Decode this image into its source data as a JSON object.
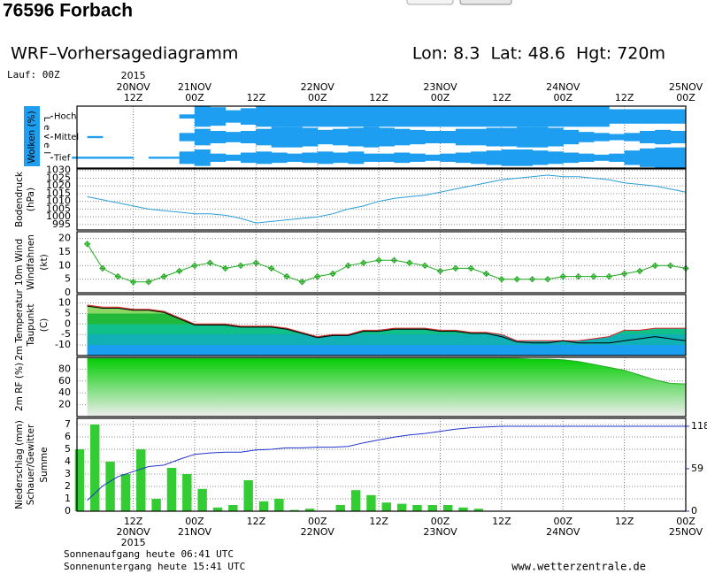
{
  "header": {
    "station": "76596 Forbach"
  },
  "meta": {
    "title": "WRF–Vorhersagediagramm",
    "location": "Lon: 8.3  Lat: 48.6  Hgt: 720m",
    "run": "Lauf: 00Z",
    "footer": [
      "Sonnenaufgang heute 06:41 UTC",
      "Sonnenuntergang heute 15:41 UTC"
    ],
    "source": "www.wetterzentrale.de"
  },
  "time_axis": {
    "xlim": [
      1,
      120
    ],
    "xticks": [
      {
        "value": 12,
        "label": "12Z"
      },
      {
        "value": 24,
        "label": "00Z"
      },
      {
        "value": 36,
        "label": "12Z"
      },
      {
        "value": 48,
        "label": "00Z"
      },
      {
        "value": 60,
        "label": "12Z"
      },
      {
        "value": 72,
        "label": "00Z"
      },
      {
        "value": 84,
        "label": "12Z"
      },
      {
        "value": 96,
        "label": "00Z"
      },
      {
        "value": 108,
        "label": "12Z"
      },
      {
        "value": 120,
        "label": "00Z"
      }
    ],
    "dates": [
      {
        "value": 12,
        "label": "20NOV"
      },
      {
        "value": 24,
        "label": "21NOV"
      },
      {
        "value": 48,
        "label": "22NOV"
      },
      {
        "value": 72,
        "label": "23NOV"
      },
      {
        "value": 96,
        "label": "24NOV"
      },
      {
        "value": 120,
        "label": "25NOV"
      }
    ],
    "year": {
      "value": 12,
      "label": "2015"
    },
    "x": [
      3,
      6,
      9,
      12,
      15,
      18,
      21,
      24,
      27,
      30,
      33,
      36,
      39,
      42,
      45,
      48,
      51,
      54,
      57,
      60,
      63,
      66,
      69,
      72,
      75,
      78,
      81,
      84,
      87,
      90,
      93,
      96,
      99,
      102,
      105,
      108,
      111,
      114,
      117,
      120
    ],
    "grid": true
  },
  "chart_data": [
    {
      "type": "cloud",
      "ylabels": [
        {
          "text": "Wolken (%)",
          "color": "#ffffff"
        }
      ],
      "label_box": "#1e9ef0",
      "level_label": "Level",
      "color": "#1e9ef0",
      "series": [
        {
          "name": "Hoch",
          "values": [
            0,
            0,
            0,
            0,
            0,
            0,
            0,
            20,
            100,
            90,
            60,
            80,
            100,
            100,
            100,
            100,
            100,
            100,
            100,
            100,
            100,
            100,
            100,
            100,
            100,
            100,
            100,
            100,
            100,
            100,
            100,
            100,
            100,
            100,
            100,
            70,
            70,
            70,
            70,
            70
          ]
        },
        {
          "name": "Mittel",
          "values": [
            0,
            10,
            0,
            0,
            0,
            0,
            0,
            40,
            80,
            60,
            50,
            60,
            80,
            100,
            100,
            90,
            70,
            80,
            90,
            100,
            90,
            80,
            70,
            60,
            60,
            80,
            80,
            90,
            90,
            100,
            100,
            90,
            70,
            50,
            40,
            30,
            40,
            60,
            70,
            60
          ]
        },
        {
          "name": "Tief",
          "values": [
            10,
            10,
            10,
            10,
            0,
            10,
            10,
            60,
            80,
            40,
            30,
            50,
            60,
            50,
            40,
            50,
            60,
            50,
            60,
            40,
            40,
            50,
            40,
            30,
            40,
            50,
            60,
            70,
            80,
            80,
            70,
            60,
            50,
            40,
            30,
            40,
            70,
            90,
            100,
            100
          ]
        }
      ]
    },
    {
      "type": "line",
      "ylabels": [
        {
          "text": "Bodendruck",
          "color": "#000000"
        },
        {
          "text": "(hPa)",
          "color": "#000000"
        }
      ],
      "ylim": [
        991.5,
        1031
      ],
      "yticks": [
        995,
        1000,
        1005,
        1010,
        1015,
        1020,
        1025,
        1030
      ],
      "series": [
        {
          "color": "#2a9fd6",
          "values": [
            1013,
            1011,
            1009,
            1007,
            1005,
            1004,
            1003,
            1002,
            1002,
            1001,
            999,
            996,
            997,
            998,
            999,
            1000,
            1002,
            1005,
            1007,
            1010,
            1012,
            1013,
            1014,
            1016,
            1018,
            1020,
            1022,
            1024,
            1025,
            1026,
            1027,
            1026,
            1026,
            1025,
            1024,
            1022,
            1021,
            1020,
            1018,
            1016
          ]
        }
      ]
    },
    {
      "type": "line",
      "ylabels": [
        {
          "text": "10m Wind",
          "color": "#22aa22"
        },
        {
          "text": "Windfahnen",
          "color": "#000000"
        },
        {
          "text": "(kt)",
          "color": "#000000"
        }
      ],
      "ylim": [
        0,
        22.5
      ],
      "yticks": [
        0,
        5,
        10,
        15,
        20
      ],
      "marker": "diamond",
      "series": [
        {
          "color": "#22aa22",
          "values": [
            18,
            9,
            6,
            4,
            4,
            6,
            8,
            10,
            11,
            9,
            10,
            11,
            9,
            6,
            4,
            6,
            7,
            10,
            11,
            12,
            12,
            11,
            10,
            8,
            9,
            9,
            7,
            5,
            5,
            5,
            5,
            6,
            6,
            6,
            6,
            7,
            8,
            10,
            10,
            9
          ]
        }
      ]
    },
    {
      "type": "area",
      "ylabels": [
        {
          "text": "2m Temperatur",
          "color": "#dd2222"
        },
        {
          "text": "Taupunkt",
          "color": "#000000"
        },
        {
          "text": "(C)",
          "color": "#000000"
        }
      ],
      "ylim": [
        -15,
        14
      ],
      "yticks": [
        10,
        5,
        0,
        -5,
        -10
      ],
      "fill_colors": [
        "#b4e894",
        "#8cd864",
        "#22b83a",
        "#10c088",
        "#10b0b4",
        "#1a9ef0"
      ],
      "series": [
        {
          "color": "#dd2222",
          "values": [
            9,
            8,
            8,
            7,
            7,
            6,
            3,
            0,
            0,
            0,
            -1,
            -1,
            -1,
            -2,
            -4,
            -6,
            -5,
            -5,
            -3,
            -3,
            -2,
            -2,
            -2,
            -3,
            -3,
            -4,
            -4,
            -5,
            -8,
            -8,
            -8,
            -8,
            -8,
            -7,
            -6,
            -3,
            -3,
            -2,
            -2,
            -2
          ]
        },
        {
          "color": "#000000",
          "values": [
            8.5,
            7.5,
            7.5,
            6.5,
            6.5,
            5.5,
            2.5,
            -0.5,
            -0.5,
            -0.5,
            -1.5,
            -1.5,
            -1.5,
            -2.5,
            -4.5,
            -6.5,
            -5.5,
            -5.5,
            -3.5,
            -3.5,
            -2.5,
            -2.5,
            -2.5,
            -3.5,
            -3.5,
            -4.5,
            -4.5,
            -6,
            -8.5,
            -9,
            -9,
            -8,
            -9,
            -9,
            -9,
            -8,
            -7,
            -6,
            -7,
            -8
          ]
        }
      ]
    },
    {
      "type": "area",
      "ylabels": [
        {
          "text": "2m RF (%)",
          "color": "#22aa22"
        }
      ],
      "ylim": [
        0,
        100
      ],
      "yticks": [
        20,
        40,
        60,
        80
      ],
      "fill_colors": [
        "#00cc00",
        "#eeeeee"
      ],
      "series": [
        {
          "color": "#22aa22",
          "values": [
            98,
            98,
            98,
            98,
            98,
            98,
            98,
            98,
            98,
            98,
            98,
            98,
            98,
            98,
            98,
            98,
            98,
            98,
            98,
            98,
            98,
            98,
            98,
            98,
            98,
            98,
            98,
            98,
            98,
            97,
            97,
            96,
            93,
            88,
            83,
            78,
            70,
            62,
            56,
            55
          ]
        }
      ]
    },
    {
      "type": "bar",
      "ylabels": [
        {
          "text": "Niederschlag (mm)",
          "color": "#22aa22"
        },
        {
          "text": "Schauer/Gewitter",
          "color": "#dd2222"
        },
        {
          "text": "Summe",
          "color": "#2233cc"
        }
      ],
      "ylim": [
        0,
        7.5
      ],
      "yticks": [
        0,
        1,
        2,
        3,
        4,
        5,
        6,
        7
      ],
      "y2lim": [
        0,
        129
      ],
      "y2ticks": [
        0,
        59,
        118
      ],
      "series": [
        {
          "color": "#33cc33",
          "values": [
            5,
            7,
            4,
            3,
            5,
            1,
            3.5,
            3,
            1.8,
            0.3,
            0.5,
            2.5,
            0.8,
            1,
            0.1,
            0.2,
            0,
            0.5,
            1.7,
            1.3,
            0.7,
            0.6,
            0.5,
            0.5,
            0.5,
            0.3,
            0.2,
            0,
            0,
            0,
            0,
            0,
            0,
            0,
            0,
            0,
            0,
            0,
            0,
            0
          ]
        },
        {
          "color": "#2233cc",
          "axis": "y2",
          "values": [
            15,
            35,
            48,
            55,
            62,
            64,
            72,
            79,
            81,
            82,
            82,
            85,
            86,
            88,
            88,
            89,
            89,
            90,
            95,
            99,
            103,
            106,
            108,
            111,
            114,
            116,
            117,
            118,
            118,
            118,
            118,
            118,
            118,
            118,
            118,
            118,
            118,
            118,
            118,
            118
          ]
        }
      ]
    }
  ]
}
